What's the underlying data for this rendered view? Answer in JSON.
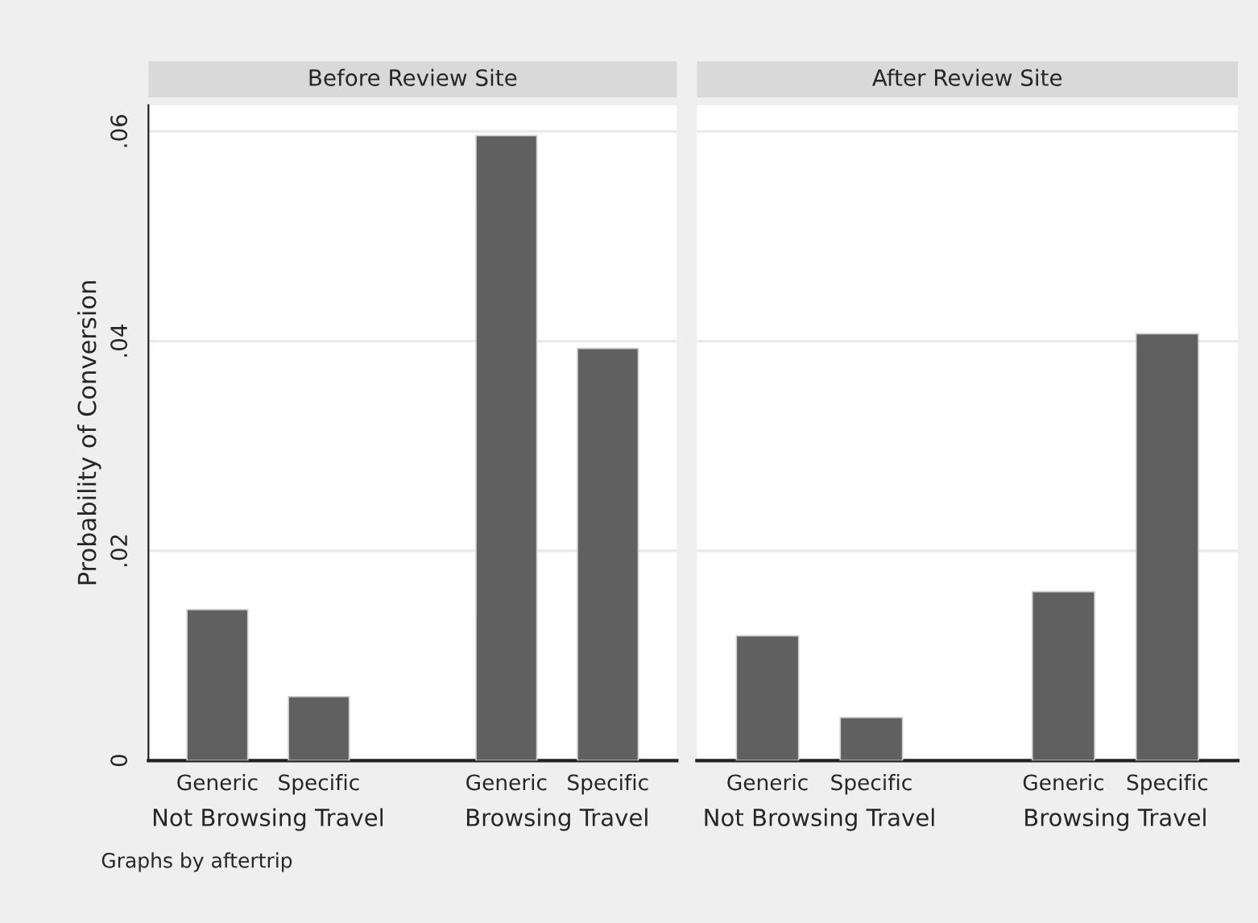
{
  "chart_data": [
    {
      "type": "bar",
      "title": "Before Review Site",
      "ylabel": "Probability of Conversion",
      "categories": [
        "Generic",
        "Specific",
        "Generic",
        "Specific"
      ],
      "values": [
        0.0144,
        0.0061,
        0.0596,
        0.0393
      ],
      "color": "#606060",
      "ylim": [
        0,
        0.0625
      ],
      "yticks": [
        {
          "value": 0,
          "label": "0"
        },
        {
          "value": 0.02,
          "label": ".02"
        },
        {
          "value": 0.04,
          "label": ".04"
        },
        {
          "value": 0.06,
          "label": ".06"
        }
      ],
      "grid": "y",
      "annotations": [
        "Not Browsing Travel",
        "Browsing Travel",
        "Graphs by aftertrip"
      ]
    },
    {
      "type": "bar",
      "title": "After Review Site",
      "categories": [
        "Generic",
        "Specific",
        "Generic",
        "Specific"
      ],
      "values": [
        0.0119,
        0.0041,
        0.0161,
        0.0407
      ],
      "color": "#606060",
      "ylim": [
        0,
        0.0625
      ],
      "yticks": [
        {
          "value": 0,
          "label": null
        },
        {
          "value": 0.02,
          "label": null
        },
        {
          "value": 0.04,
          "label": null
        },
        {
          "value": 0.06,
          "label": null
        }
      ],
      "grid": "y",
      "tick_labels": "x",
      "annotations": [
        "Not Browsing Travel",
        "Browsing Travel"
      ]
    }
  ]
}
